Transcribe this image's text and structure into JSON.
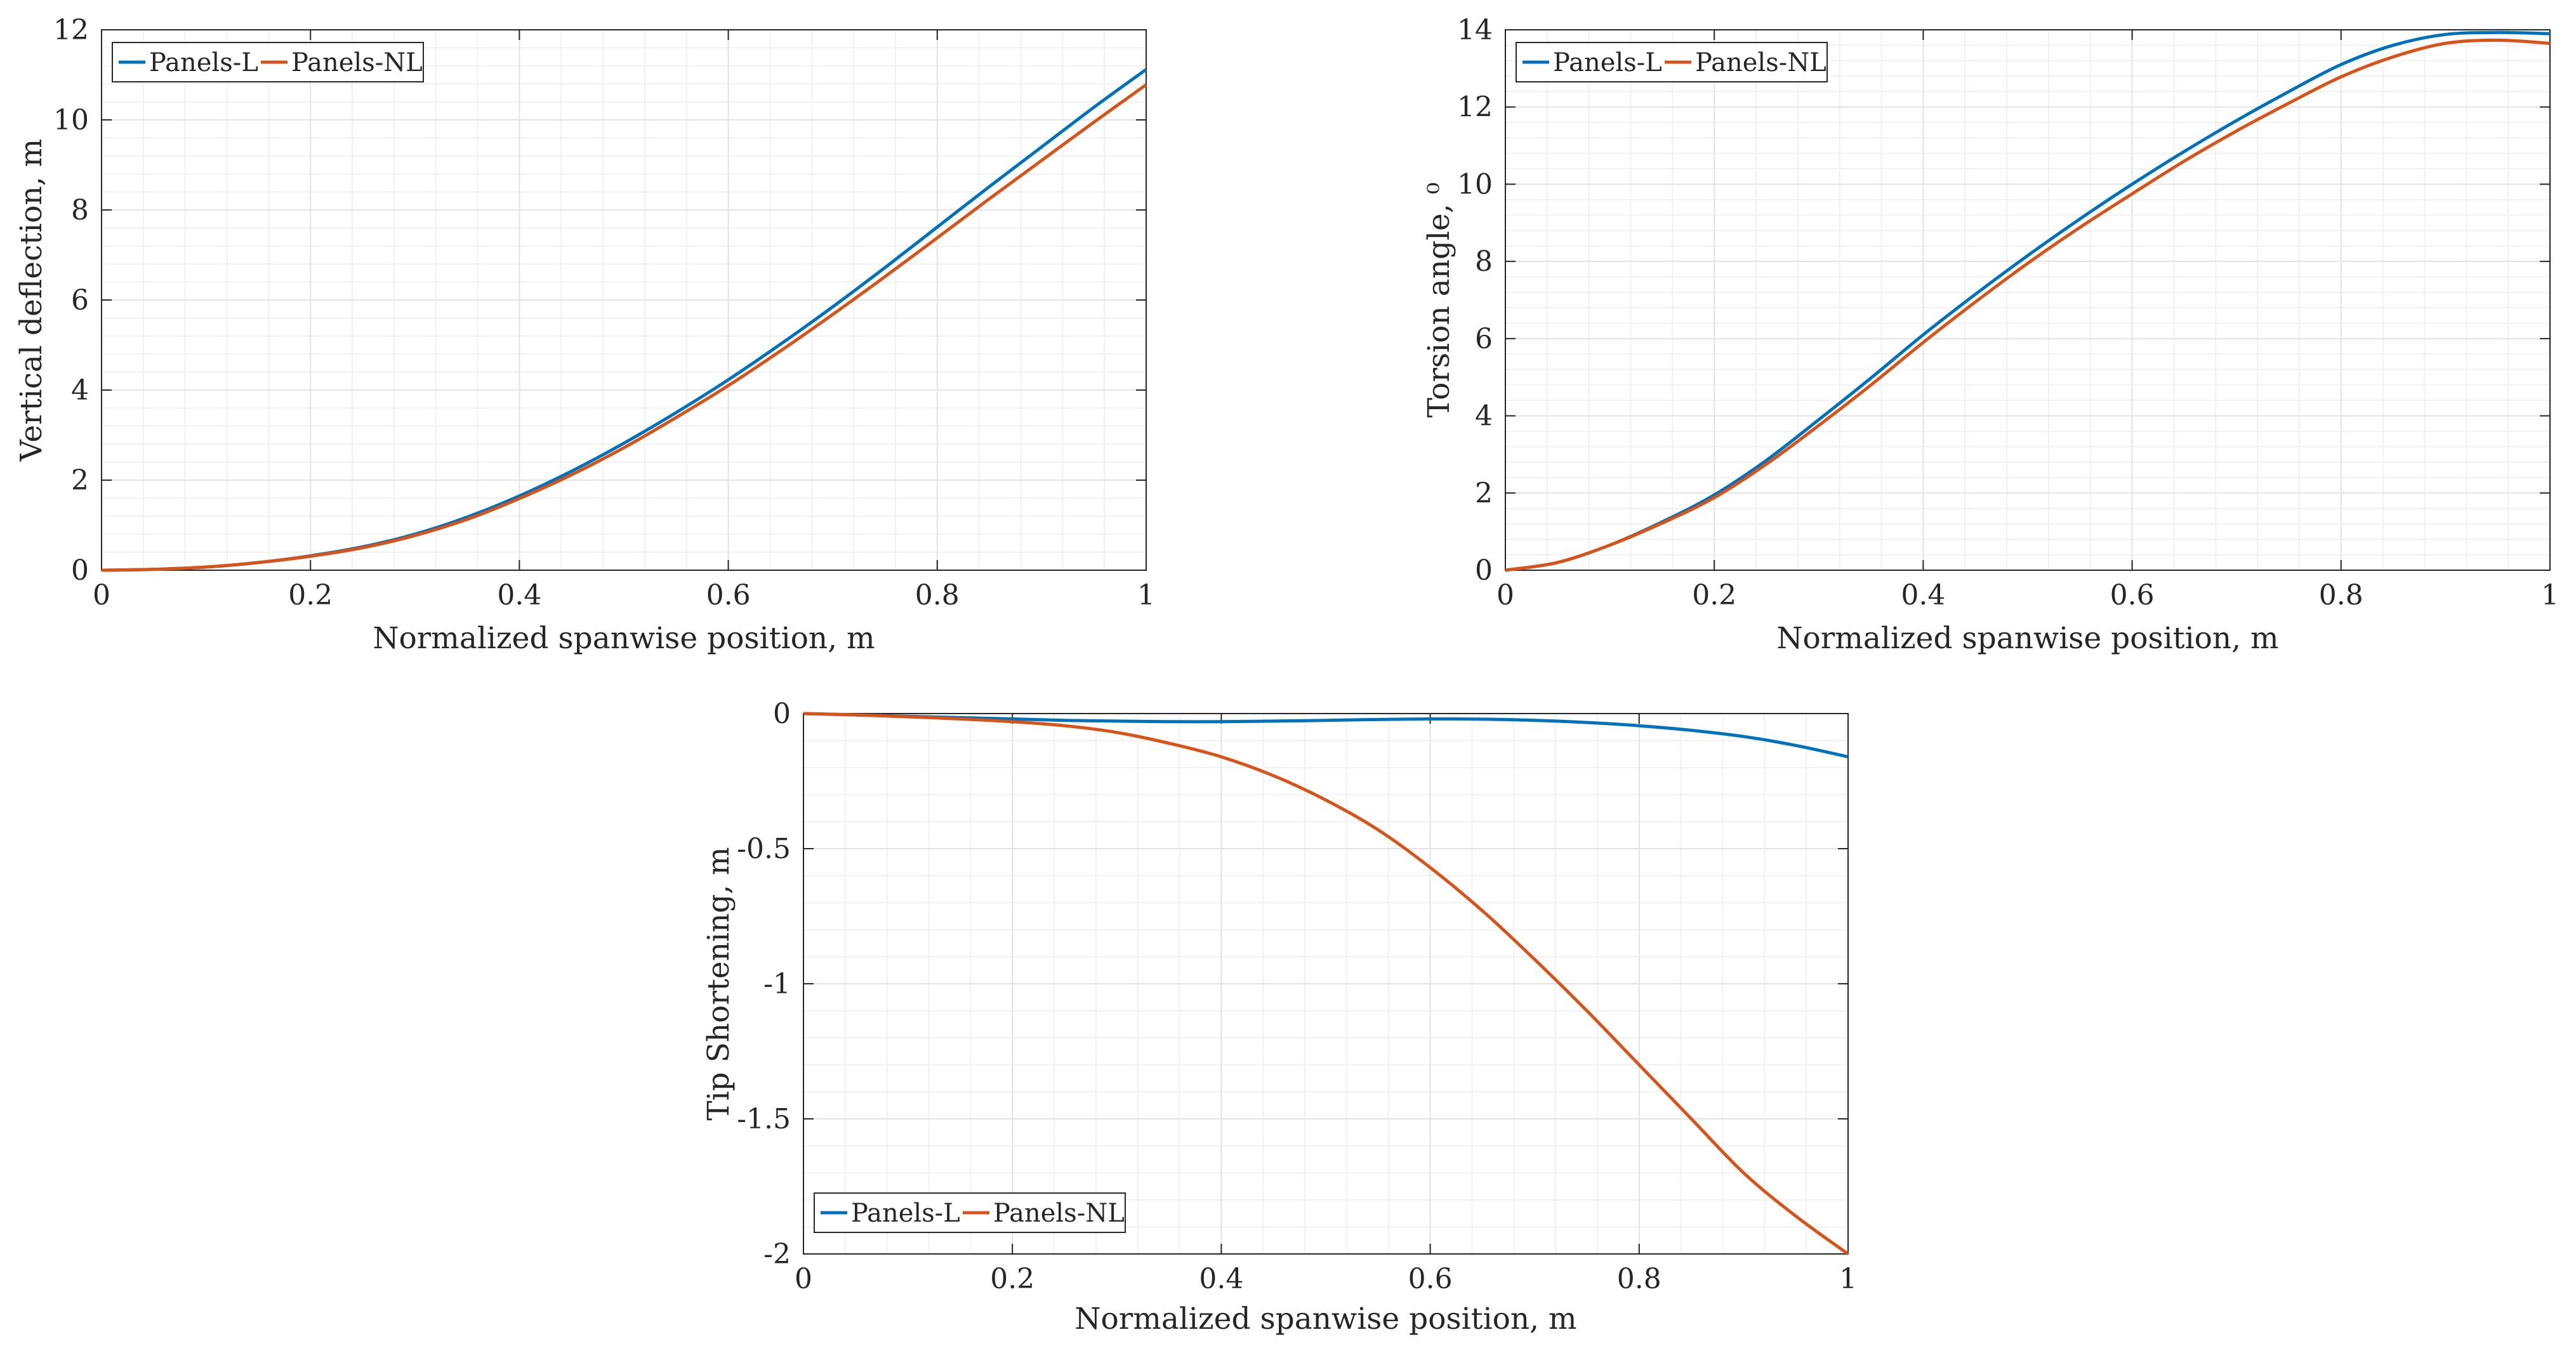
{
  "colors": {
    "series_l": "#0072BD",
    "series_nl": "#D95319",
    "axis": "#262626",
    "grid_minor": "#f1f1f1",
    "grid_major": "#e3e3e3"
  },
  "chart_data": [
    {
      "type": "line",
      "title": "",
      "xlabel": "Normalized spanwise position, m",
      "ylabel": "Vertical deflection, m",
      "xlim": [
        0,
        1
      ],
      "ylim": [
        0,
        12
      ],
      "xticks": [
        0,
        0.2,
        0.4,
        0.6,
        0.8,
        1
      ],
      "yticks": [
        0,
        2,
        4,
        6,
        8,
        10,
        12
      ],
      "xtick_labels": [
        "0",
        "0.2",
        "0.4",
        "0.6",
        "0.8",
        "1"
      ],
      "ytick_labels": [
        "0",
        "2",
        "4",
        "6",
        "8",
        "10",
        "12"
      ],
      "grid": true,
      "legend_position": "top-left",
      "x": [
        0,
        0.05,
        0.1,
        0.15,
        0.2,
        0.25,
        0.3,
        0.35,
        0.4,
        0.45,
        0.5,
        0.55,
        0.6,
        0.65,
        0.7,
        0.75,
        0.8,
        0.85,
        0.9,
        0.95,
        1
      ],
      "series": [
        {
          "name": "Panels-L",
          "color": "#0072BD",
          "values": [
            0,
            0.02,
            0.07,
            0.17,
            0.32,
            0.52,
            0.8,
            1.18,
            1.65,
            2.2,
            2.82,
            3.5,
            4.23,
            5.02,
            5.85,
            6.72,
            7.62,
            8.52,
            9.4,
            10.28,
            11.12
          ]
        },
        {
          "name": "Panels-NL",
          "color": "#D95319",
          "values": [
            0,
            0.02,
            0.07,
            0.17,
            0.31,
            0.5,
            0.77,
            1.13,
            1.59,
            2.12,
            2.72,
            3.39,
            4.1,
            4.87,
            5.68,
            6.52,
            7.38,
            8.25,
            9.1,
            9.95,
            10.78
          ]
        }
      ]
    },
    {
      "type": "line",
      "title": "",
      "xlabel": "Normalized spanwise position, m",
      "ylabel": "Torsion angle, ⁰",
      "xlim": [
        0,
        1
      ],
      "ylim": [
        0,
        14
      ],
      "xticks": [
        0,
        0.2,
        0.4,
        0.6,
        0.8,
        1
      ],
      "yticks": [
        0,
        2,
        4,
        6,
        8,
        10,
        12,
        14
      ],
      "xtick_labels": [
        "0",
        "0.2",
        "0.4",
        "0.6",
        "0.8",
        "1"
      ],
      "ytick_labels": [
        "0",
        "2",
        "4",
        "6",
        "8",
        "10",
        "12",
        "14"
      ],
      "grid": true,
      "legend_position": "top-left",
      "x": [
        0,
        0.05,
        0.1,
        0.15,
        0.2,
        0.25,
        0.3,
        0.35,
        0.4,
        0.45,
        0.5,
        0.55,
        0.6,
        0.65,
        0.7,
        0.75,
        0.8,
        0.85,
        0.9,
        0.95,
        1
      ],
      "series": [
        {
          "name": "Panels-L",
          "color": "#0072BD",
          "values": [
            0,
            0.2,
            0.65,
            1.25,
            1.95,
            2.85,
            3.9,
            4.98,
            6.1,
            7.15,
            8.15,
            9.1,
            10.0,
            10.85,
            11.65,
            12.4,
            13.1,
            13.6,
            13.88,
            13.93,
            13.9
          ]
        },
        {
          "name": "Panels-NL",
          "color": "#D95319",
          "values": [
            0,
            0.2,
            0.65,
            1.22,
            1.88,
            2.75,
            3.75,
            4.8,
            5.9,
            6.95,
            7.95,
            8.88,
            9.75,
            10.6,
            11.38,
            12.1,
            12.78,
            13.3,
            13.65,
            13.73,
            13.65
          ]
        }
      ]
    },
    {
      "type": "line",
      "title": "",
      "xlabel": "Normalized spanwise position, m",
      "ylabel": "Tip Shortening, m",
      "xlim": [
        0,
        1
      ],
      "ylim": [
        -2,
        0
      ],
      "xticks": [
        0,
        0.2,
        0.4,
        0.6,
        0.8,
        1
      ],
      "yticks": [
        -2,
        -1.5,
        -1,
        -0.5,
        0
      ],
      "xtick_labels": [
        "0",
        "0.2",
        "0.4",
        "0.6",
        "0.8",
        "1"
      ],
      "ytick_labels": [
        "-2",
        "-1.5",
        "-1",
        "-0.5",
        "0"
      ],
      "grid": true,
      "legend_position": "bottom-left",
      "x": [
        0,
        0.05,
        0.1,
        0.15,
        0.2,
        0.25,
        0.3,
        0.35,
        0.4,
        0.45,
        0.5,
        0.55,
        0.6,
        0.65,
        0.7,
        0.75,
        0.8,
        0.85,
        0.9,
        0.95,
        1
      ],
      "series": [
        {
          "name": "Panels-L",
          "color": "#0072BD",
          "values": [
            0,
            -0.005,
            -0.01,
            -0.015,
            -0.02,
            -0.025,
            -0.028,
            -0.03,
            -0.03,
            -0.028,
            -0.025,
            -0.022,
            -0.02,
            -0.021,
            -0.025,
            -0.033,
            -0.045,
            -0.062,
            -0.085,
            -0.118,
            -0.16
          ]
        },
        {
          "name": "Panels-NL",
          "color": "#D95319",
          "values": [
            0,
            -0.005,
            -0.012,
            -0.02,
            -0.03,
            -0.045,
            -0.07,
            -0.11,
            -0.16,
            -0.23,
            -0.32,
            -0.43,
            -0.57,
            -0.73,
            -0.91,
            -1.1,
            -1.3,
            -1.5,
            -1.7,
            -1.86,
            -2.0
          ]
        }
      ]
    }
  ]
}
